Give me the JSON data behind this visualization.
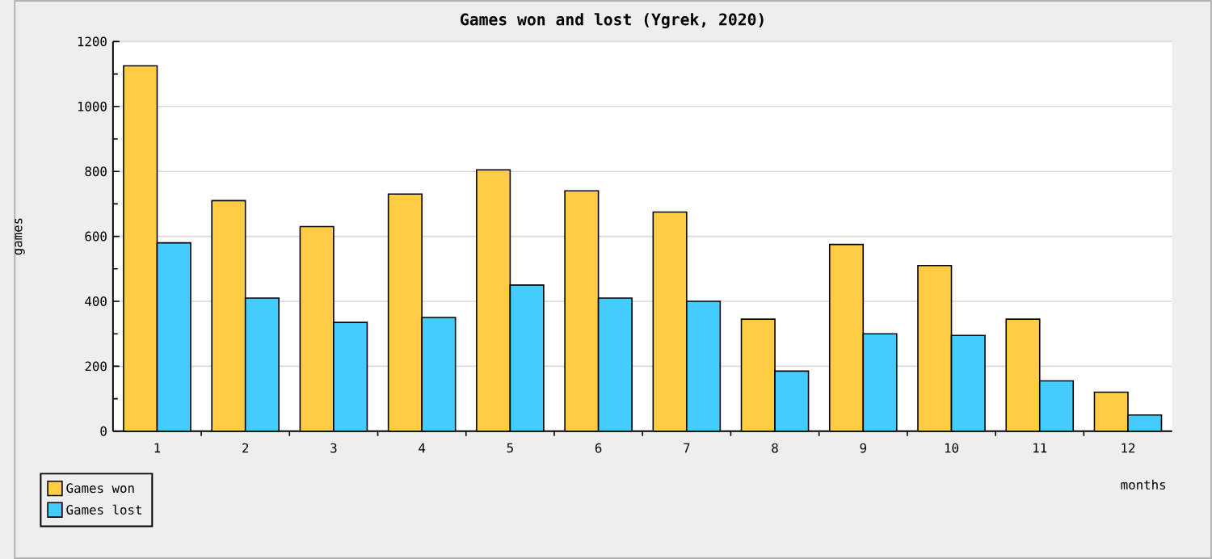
{
  "chart_data": {
    "type": "bar",
    "title": "Games won and lost (Ygrek, 2020)",
    "xlabel": "months",
    "ylabel": "games",
    "categories": [
      "1",
      "2",
      "3",
      "4",
      "5",
      "6",
      "7",
      "8",
      "9",
      "10",
      "11",
      "12"
    ],
    "series": [
      {
        "name": "Games won",
        "color": "#ffcc44",
        "values": [
          1125,
          710,
          630,
          730,
          805,
          740,
          675,
          345,
          575,
          510,
          345,
          120
        ]
      },
      {
        "name": "Games lost",
        "color": "#44ccff",
        "values": [
          580,
          410,
          335,
          350,
          450,
          410,
          400,
          185,
          300,
          295,
          155,
          50
        ]
      }
    ],
    "ylim": [
      0,
      1200
    ],
    "yticks": [
      0,
      200,
      400,
      600,
      800,
      1000,
      1200
    ],
    "grid": "y",
    "legend": "bottom left"
  }
}
